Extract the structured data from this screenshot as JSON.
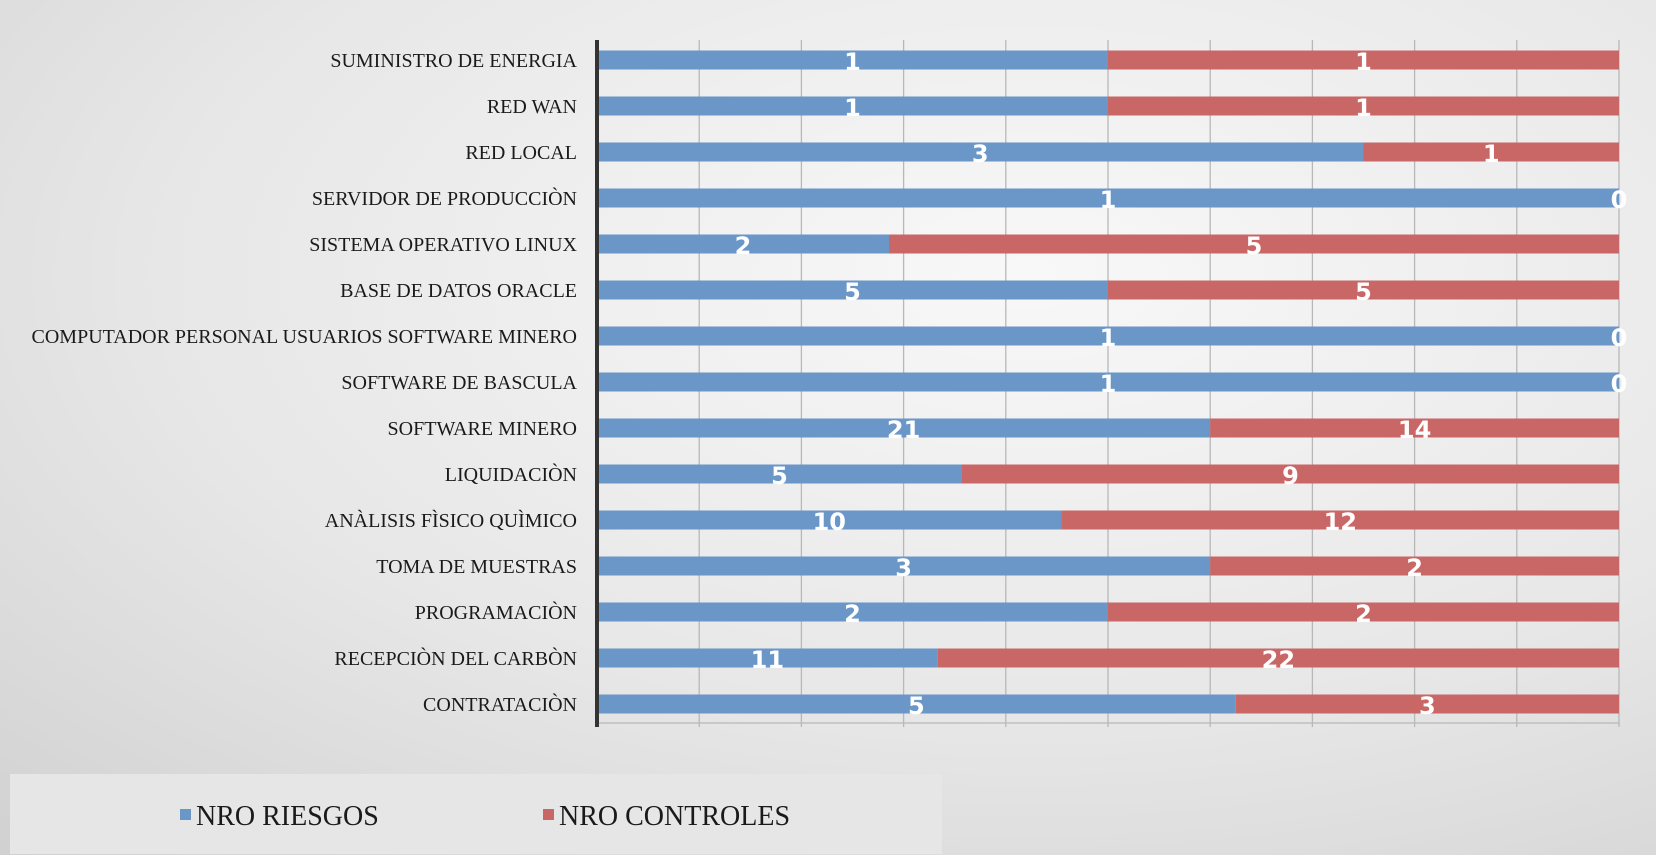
{
  "chart_data": {
    "type": "bar",
    "orientation": "horizontal",
    "stacked": "percent",
    "categories": [
      "SUMINISTRO DE ENERGIA",
      "RED WAN",
      "RED LOCAL",
      "SERVIDOR DE PRODUCCIÒN",
      "SISTEMA OPERATIVO LINUX",
      "BASE DE DATOS ORACLE",
      "COMPUTADOR PERSONAL USUARIOS SOFTWARE MINERO",
      "SOFTWARE DE BASCULA",
      "SOFTWARE MINERO",
      "LIQUIDACIÒN",
      "ANÀLISIS FÌSICO QUÌMICO",
      "TOMA DE MUESTRAS",
      "PROGRAMACIÒN",
      "RECEPCIÒN DEL CARBÒN",
      "CONTRATACIÒN"
    ],
    "series": [
      {
        "name": "NRO RIESGOS",
        "color": "#6a96c8",
        "values": [
          1,
          1,
          3,
          1,
          2,
          5,
          1,
          1,
          21,
          5,
          10,
          3,
          2,
          11,
          5
        ]
      },
      {
        "name": "NRO CONTROLES",
        "color": "#c96666",
        "values": [
          1,
          1,
          1,
          0,
          5,
          5,
          0,
          0,
          14,
          9,
          12,
          2,
          2,
          22,
          3
        ]
      }
    ],
    "data_labels": true,
    "grid": true,
    "legend_position": "bottom-left"
  }
}
